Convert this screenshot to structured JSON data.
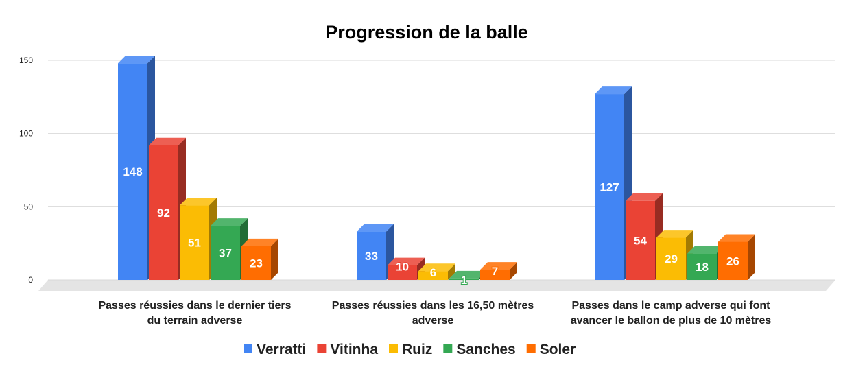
{
  "chart_data": {
    "type": "bar",
    "style": "3d-clustered-column",
    "title": "Progression de la balle",
    "xlabel": "",
    "ylabel": "",
    "ylim": [
      0,
      150
    ],
    "yticks": [
      0,
      50,
      100,
      150
    ],
    "grid": true,
    "legend_position": "bottom",
    "categories": [
      [
        "Passes réussies dans le dernier tiers",
        "du terrain adverse"
      ],
      [
        "Passes réussies dans les 16,50 mètres",
        "adverse"
      ],
      [
        "Passes dans le camp adverse qui font",
        "avancer le ballon de plus de 10 mètres"
      ]
    ],
    "series": [
      {
        "name": "Verratti",
        "color": "#4285F4",
        "values": [
          148,
          33,
          127
        ]
      },
      {
        "name": "Vitinha",
        "color": "#EA4335",
        "values": [
          92,
          10,
          54
        ]
      },
      {
        "name": "Ruiz",
        "color": "#FBBC04",
        "values": [
          51,
          6,
          29
        ]
      },
      {
        "name": "Sanches",
        "color": "#34A853",
        "values": [
          37,
          1,
          18
        ]
      },
      {
        "name": "Soler",
        "color": "#FF6D01",
        "values": [
          23,
          7,
          26
        ]
      }
    ]
  }
}
